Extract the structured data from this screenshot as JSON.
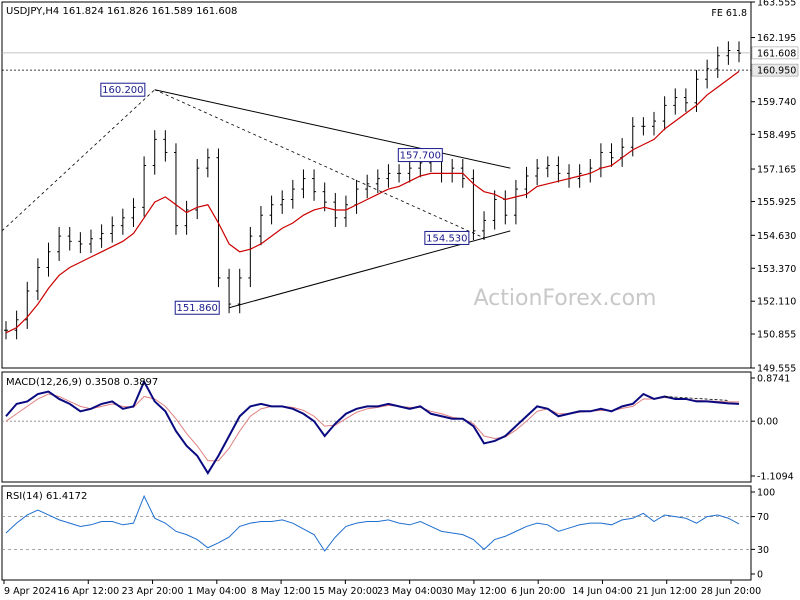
{
  "chart_data": [
    {
      "type": "line",
      "subtype": "candlestick-price-panel",
      "header": "USDJPY,H4  161.824 161.826 161.589 161.608",
      "fe_label": "FE 61.8",
      "y_ticks": [
        "163.555",
        "162.195",
        "161.608",
        "160.950",
        "159.740",
        "158.495",
        "157.165",
        "155.925",
        "154.630",
        "153.370",
        "152.110",
        "150.855",
        "149.555"
      ],
      "ylim": [
        149.555,
        163.555
      ],
      "current_price": 161.608,
      "fe_level": 160.95,
      "annotations": [
        {
          "text": "160.200",
          "value": 160.2
        },
        {
          "text": "157.700",
          "value": 157.7
        },
        {
          "text": "154.530",
          "value": 154.53
        },
        {
          "text": "151.860",
          "value": 151.86
        }
      ],
      "x_labels": [
        "9 Apr 2024",
        "16 Apr 12:00",
        "23 Apr 20:00",
        "1 May 04:00",
        "8 May 12:00",
        "15 May 20:00",
        "23 May 04:00",
        "30 May 12:00",
        "6 Jun 20:00",
        "14 Jun 04:00",
        "21 Jun 12:00",
        "28 Jun 20:00"
      ],
      "series": [
        {
          "values": [
            151.0,
            151.4,
            152.5,
            153.4,
            154.0,
            154.6,
            154.4,
            154.3,
            154.5,
            154.7,
            155.0,
            155.3,
            155.7,
            157.3,
            158.3,
            157.8,
            155.0,
            155.6,
            157.2,
            157.6,
            153.0,
            152.0,
            153.0,
            154.6,
            155.4,
            155.8,
            156.0,
            156.4,
            156.8,
            156.3,
            155.9,
            155.3,
            155.8,
            156.4,
            156.6,
            156.8,
            157.0,
            157.0,
            157.2,
            157.4,
            157.5,
            157.0,
            157.2,
            156.8,
            154.8,
            155.2,
            156.0,
            155.4,
            156.4,
            156.9,
            157.2,
            157.3,
            157.0,
            156.8,
            157.0,
            157.2,
            157.8,
            157.6,
            158.0,
            158.8,
            158.8,
            159.0,
            159.6,
            159.9,
            159.7,
            160.6,
            161.0,
            161.5,
            161.7,
            161.6
          ]
        },
        {
          "values": [
            150.9,
            151.1,
            151.5,
            152.0,
            152.6,
            153.1,
            153.4,
            153.6,
            153.8,
            154.0,
            154.2,
            154.4,
            154.7,
            155.3,
            155.9,
            156.1,
            155.8,
            155.5,
            155.7,
            155.8,
            155.1,
            154.3,
            154.0,
            154.1,
            154.3,
            154.6,
            154.9,
            155.1,
            155.4,
            155.6,
            155.7,
            155.6,
            155.6,
            155.8,
            156.0,
            156.2,
            156.4,
            156.5,
            156.7,
            156.9,
            157.0,
            157.0,
            157.0,
            157.0,
            156.6,
            156.3,
            156.2,
            156.0,
            156.1,
            156.2,
            156.5,
            156.6,
            156.7,
            156.8,
            156.9,
            157.0,
            157.2,
            157.3,
            157.6,
            157.9,
            158.1,
            158.3,
            158.7,
            159.0,
            159.3,
            159.6,
            160.0,
            160.3,
            160.6,
            160.9
          ]
        }
      ]
    },
    {
      "type": "line",
      "subtype": "macd-panel",
      "header": "MACD(12,26,9) 0.3508 0.3897",
      "y_ticks": [
        "0.8741",
        "0.00",
        "-1.1094"
      ],
      "ylim": [
        -1.1094,
        0.8741
      ],
      "series": [
        {
          "values": [
            0.1,
            0.35,
            0.4,
            0.55,
            0.6,
            0.45,
            0.35,
            0.2,
            0.25,
            0.35,
            0.4,
            0.25,
            0.3,
            0.8,
            0.4,
            0.2,
            -0.2,
            -0.5,
            -0.7,
            -1.05,
            -0.7,
            -0.3,
            0.1,
            0.3,
            0.35,
            0.3,
            0.3,
            0.25,
            0.15,
            0.0,
            -0.3,
            -0.05,
            0.15,
            0.25,
            0.3,
            0.3,
            0.35,
            0.3,
            0.25,
            0.3,
            0.15,
            0.1,
            0.05,
            0.05,
            -0.1,
            -0.45,
            -0.4,
            -0.3,
            -0.1,
            0.1,
            0.3,
            0.25,
            0.1,
            0.15,
            0.2,
            0.2,
            0.25,
            0.2,
            0.3,
            0.35,
            0.55,
            0.45,
            0.5,
            0.45,
            0.45,
            0.4,
            0.4,
            0.38,
            0.36,
            0.35
          ]
        },
        {
          "values": [
            0.0,
            0.15,
            0.3,
            0.45,
            0.55,
            0.5,
            0.4,
            0.3,
            0.25,
            0.3,
            0.35,
            0.3,
            0.28,
            0.5,
            0.45,
            0.3,
            0.05,
            -0.25,
            -0.5,
            -0.8,
            -0.8,
            -0.55,
            -0.2,
            0.1,
            0.25,
            0.3,
            0.3,
            0.28,
            0.22,
            0.1,
            -0.1,
            -0.08,
            0.05,
            0.18,
            0.25,
            0.28,
            0.32,
            0.3,
            0.28,
            0.28,
            0.2,
            0.15,
            0.08,
            0.05,
            -0.05,
            -0.3,
            -0.35,
            -0.32,
            -0.18,
            0.0,
            0.2,
            0.25,
            0.15,
            0.15,
            0.18,
            0.2,
            0.22,
            0.21,
            0.26,
            0.3,
            0.45,
            0.45,
            0.48,
            0.46,
            0.45,
            0.42,
            0.41,
            0.4,
            0.39,
            0.39
          ]
        }
      ]
    },
    {
      "type": "line",
      "subtype": "rsi-panel",
      "header": "RSI(14) 61.4172",
      "y_ticks": [
        "100",
        "70",
        "30",
        "0"
      ],
      "ylim": [
        0,
        100
      ],
      "levels": [
        70,
        30
      ],
      "series": [
        {
          "values": [
            50,
            62,
            72,
            78,
            72,
            66,
            62,
            58,
            60,
            64,
            64,
            60,
            62,
            95,
            68,
            62,
            52,
            48,
            42,
            32,
            38,
            45,
            58,
            62,
            64,
            64,
            66,
            62,
            55,
            48,
            28,
            45,
            58,
            62,
            64,
            64,
            66,
            62,
            60,
            64,
            58,
            52,
            50,
            48,
            42,
            30,
            42,
            46,
            52,
            58,
            62,
            60,
            52,
            56,
            60,
            62,
            62,
            60,
            66,
            68,
            74,
            64,
            72,
            70,
            68,
            62,
            70,
            72,
            68,
            61
          ]
        }
      ]
    }
  ],
  "watermark": "ActionForex.com"
}
